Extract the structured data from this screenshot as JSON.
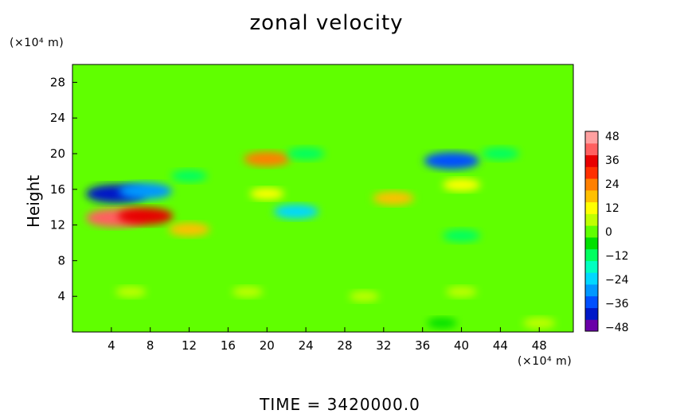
{
  "chart_data": {
    "type": "heatmap",
    "title": "zonal velocity",
    "ylabel": "Height",
    "y_unit": "(×10⁴ m)",
    "x_unit": "(×10⁴ m)",
    "footer": "TIME = 3420000.0",
    "x_range": [
      0,
      51.5
    ],
    "y_range": [
      0,
      30
    ],
    "x_ticks": [
      "4",
      "8",
      "12",
      "16",
      "20",
      "24",
      "28",
      "32",
      "36",
      "40",
      "44",
      "48"
    ],
    "y_ticks": [
      "4",
      "8",
      "12",
      "16",
      "20",
      "24",
      "28"
    ],
    "colorbar": {
      "range": [
        -50,
        50
      ],
      "labels": [
        "48",
        "36",
        "24",
        "12",
        "0",
        "−12",
        "−24",
        "−36",
        "−48"
      ],
      "colors": [
        "#6a00a8",
        "#0018c8",
        "#0050ff",
        "#0098ff",
        "#00d8ff",
        "#00ffc0",
        "#00ff60",
        "#00e000",
        "#60ff00",
        "#c0ff00",
        "#ffff00",
        "#ffc000",
        "#ff8000",
        "#ff3000",
        "#e80000",
        "#ff6060",
        "#ffa0a0"
      ]
    },
    "background_value": 1,
    "features": [
      {
        "x": 4.5,
        "y": 15.5,
        "value": -40
      },
      {
        "x": 7.5,
        "y": 15.8,
        "value": -32
      },
      {
        "x": 4.5,
        "y": 12.8,
        "value": 40
      },
      {
        "x": 7.5,
        "y": 13.0,
        "value": 34
      },
      {
        "x": 39.0,
        "y": 19.2,
        "value": -34
      },
      {
        "x": 20.0,
        "y": 19.4,
        "value": 24
      },
      {
        "x": 23.0,
        "y": 13.5,
        "value": -22
      },
      {
        "x": 12.0,
        "y": 11.5,
        "value": 18
      },
      {
        "x": 33.0,
        "y": 15.0,
        "value": 18
      },
      {
        "x": 40.0,
        "y": 16.5,
        "value": 14
      },
      {
        "x": 24.0,
        "y": 20.0,
        "value": -14
      },
      {
        "x": 44.0,
        "y": 20.0,
        "value": -14
      },
      {
        "x": 40.0,
        "y": 10.8,
        "value": -14
      },
      {
        "x": 12.0,
        "y": 17.5,
        "value": -12
      },
      {
        "x": 20.0,
        "y": 15.5,
        "value": 10
      },
      {
        "x": 6.0,
        "y": 4.5,
        "value": 6
      },
      {
        "x": 18.0,
        "y": 4.5,
        "value": 6
      },
      {
        "x": 30.0,
        "y": 4.0,
        "value": 5
      },
      {
        "x": 40.0,
        "y": 4.5,
        "value": 6
      },
      {
        "x": 48.0,
        "y": 1.0,
        "value": 8
      },
      {
        "x": 38.0,
        "y": 1.0,
        "value": -5
      }
    ]
  }
}
